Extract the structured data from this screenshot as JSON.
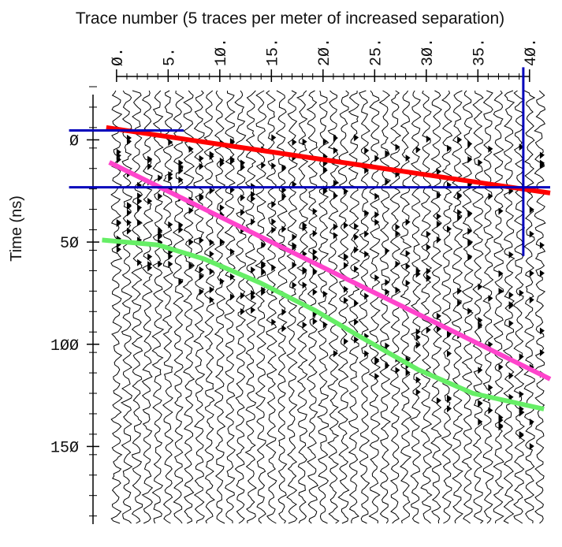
{
  "chart_data": {
    "type": "line",
    "x_label": "Trace number (5 traces per meter of increased separation)",
    "y_label": "Time (ns)",
    "xlim": [
      -0.6,
      42
    ],
    "ylim": [
      188,
      -26
    ],
    "xticks": [
      {
        "value": 0,
        "label": "Ø."
      },
      {
        "value": 5,
        "label": "5."
      },
      {
        "value": 10,
        "label": "1Ø."
      },
      {
        "value": 15,
        "label": "15."
      },
      {
        "value": 20,
        "label": "2Ø."
      },
      {
        "value": 25,
        "label": "25."
      },
      {
        "value": 30,
        "label": "3Ø."
      },
      {
        "value": 35,
        "label": "35."
      },
      {
        "value": 40,
        "label": "4Ø."
      }
    ],
    "yticks": [
      {
        "value": 0,
        "label": "Ø"
      },
      {
        "value": 50,
        "label": "5Ø"
      },
      {
        "value": 100,
        "label": "1ØØ"
      },
      {
        "value": 150,
        "label": "15Ø"
      }
    ],
    "series": [
      {
        "color": "#ff0000",
        "x": [
          -1,
          42
        ],
        "values": [
          -6,
          26
        ]
      },
      {
        "color": "#ff44cc",
        "x": [
          -0.7,
          42
        ],
        "values": [
          11,
          117
        ]
      },
      {
        "color": "#66ee66",
        "x": [
          -1.4,
          4,
          8.5,
          13.9,
          19.2,
          23.8,
          29.2,
          34.5,
          41.4
        ],
        "values": [
          49,
          51.4,
          58.3,
          69.9,
          83.4,
          96.9,
          112.4,
          124,
          131.7
        ]
      },
      {
        "color": "#0000bb",
        "x": [
          -4.6,
          6.5
        ],
        "values": [
          -4.6,
          -4.6
        ]
      },
      {
        "color": "#0000bb",
        "x": [
          -4.6,
          42
        ],
        "values": [
          23.2,
          23.2
        ]
      },
      {
        "color": "#0000bb",
        "x": [
          39.4,
          39.4
        ],
        "values": [
          -35.5,
          56.8
        ]
      }
    ]
  }
}
